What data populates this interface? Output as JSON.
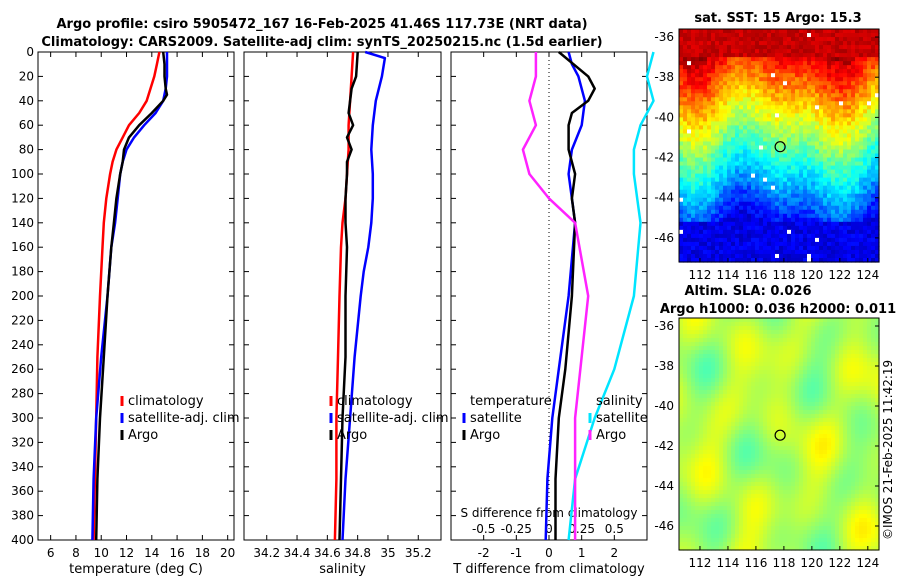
{
  "header": {
    "line1": "Argo profile: csiro 5905472_167 16-Feb-2025 41.46S 117.73E (NRT data)",
    "line2": "Climatology: CARS2009. Satellite-adj clim: synTS_20250215.nc (1.5d earlier)"
  },
  "stamp": "©IMOS 21-Feb-2025 11:42:19",
  "colors": {
    "climatology": "#ff0000",
    "satellite": "#0000ff",
    "argo": "#000000",
    "sal_satellite": "#00e5ff",
    "sal_argo": "#ff22ff"
  },
  "chart_data": [
    {
      "type": "line",
      "id": "temperature",
      "xlabel": "temperature (deg C)",
      "ylabel": "",
      "xlim": [
        5,
        20.5
      ],
      "ylim": [
        400,
        0
      ],
      "xticks": [
        "6",
        "8",
        "10",
        "12",
        "14",
        "16",
        "18",
        "20"
      ],
      "yticks": [
        "0",
        "20",
        "40",
        "60",
        "80",
        "100",
        "120",
        "140",
        "160",
        "180",
        "200",
        "220",
        "240",
        "260",
        "280",
        "300",
        "320",
        "340",
        "360",
        "380",
        "400"
      ],
      "legend": [
        "climatology",
        "satellite-adj. clim",
        "Argo"
      ],
      "series": [
        {
          "name": "climatology",
          "depth": [
            0,
            10,
            20,
            40,
            50,
            60,
            70,
            80,
            90,
            100,
            120,
            140,
            160,
            200,
            250,
            300,
            350,
            400
          ],
          "values": [
            14.6,
            14.4,
            14.2,
            13.6,
            13.0,
            12.2,
            11.7,
            11.2,
            10.9,
            10.7,
            10.4,
            10.2,
            10.1,
            9.9,
            9.7,
            9.6,
            9.5,
            9.4
          ]
        },
        {
          "name": "satellite-adj. clim",
          "depth": [
            0,
            10,
            20,
            30,
            40,
            50,
            60,
            70,
            80,
            90,
            100,
            120,
            140,
            160,
            200,
            250,
            300,
            350,
            400
          ],
          "values": [
            15.2,
            15.2,
            15.2,
            15.1,
            14.9,
            14.3,
            13.4,
            12.6,
            12.0,
            11.7,
            11.5,
            11.3,
            11.1,
            10.8,
            10.5,
            10.0,
            9.6,
            9.4,
            9.3
          ]
        },
        {
          "name": "Argo",
          "depth": [
            0,
            10,
            20,
            30,
            35,
            40,
            50,
            60,
            70,
            80,
            90,
            100,
            120,
            140,
            160,
            200,
            250,
            300,
            350,
            400
          ],
          "values": [
            14.9,
            15.0,
            15.0,
            15.1,
            15.2,
            14.9,
            14.0,
            13.0,
            12.2,
            11.8,
            11.7,
            11.5,
            11.2,
            11.0,
            10.8,
            10.5,
            10.2,
            9.9,
            9.7,
            9.6
          ]
        }
      ]
    },
    {
      "type": "line",
      "id": "salinity",
      "xlabel": "salinity",
      "ylabel": "",
      "xlim": [
        34.05,
        35.35
      ],
      "ylim": [
        400,
        0
      ],
      "xticks": [
        "34.2",
        "34.4",
        "34.6",
        "34.8",
        "35",
        "35.2"
      ],
      "legend": [
        "climatology",
        "satellite-adj. clim",
        "Argo"
      ],
      "series": [
        {
          "name": "climatology",
          "depth": [
            0,
            20,
            40,
            60,
            80,
            100,
            120,
            140,
            160,
            200,
            250,
            300,
            350,
            400
          ],
          "values": [
            34.77,
            34.76,
            34.75,
            34.74,
            34.74,
            34.73,
            34.72,
            34.7,
            34.69,
            34.68,
            34.67,
            34.66,
            34.66,
            34.65
          ]
        },
        {
          "name": "satellite-adj. clim",
          "depth": [
            0,
            5,
            20,
            40,
            60,
            80,
            100,
            120,
            140,
            160,
            180,
            200,
            250,
            300,
            350,
            400
          ],
          "values": [
            34.85,
            34.98,
            34.96,
            34.92,
            34.9,
            34.89,
            34.9,
            34.9,
            34.89,
            34.87,
            34.84,
            34.82,
            34.78,
            34.75,
            34.72,
            34.7
          ]
        },
        {
          "name": "Argo",
          "depth": [
            0,
            20,
            30,
            40,
            50,
            60,
            70,
            80,
            90,
            100,
            120,
            140,
            160,
            200,
            250,
            300,
            350,
            400
          ],
          "values": [
            34.8,
            34.79,
            34.76,
            34.75,
            34.74,
            34.77,
            34.73,
            34.76,
            34.73,
            34.73,
            34.72,
            34.72,
            34.73,
            34.72,
            34.72,
            34.7,
            34.69,
            34.68
          ]
        }
      ]
    },
    {
      "type": "line",
      "id": "difference",
      "xlabel": "T difference from climatology",
      "top_label": "S difference from climatology",
      "top_ticks": [
        "-0.5",
        "-0.25",
        "0",
        "0.25",
        "0.5"
      ],
      "xlim": [
        -3,
        3
      ],
      "ylim": [
        400,
        0
      ],
      "xticks": [
        "-2",
        "-1",
        "0",
        "1",
        "2"
      ],
      "legend_t_title": "temperature",
      "legend_s_title": "salinity",
      "legend_t": [
        "satellite",
        "Argo"
      ],
      "legend_s": [
        "satellite",
        "Argo"
      ],
      "series": [
        {
          "name": "T satellite",
          "depth": [
            0,
            10,
            20,
            40,
            60,
            80,
            100,
            120,
            140,
            200,
            260,
            300,
            350,
            400
          ],
          "values": [
            0.6,
            0.7,
            0.9,
            1.1,
            1.0,
            0.7,
            0.6,
            0.7,
            0.8,
            0.6,
            0.3,
            0.1,
            -0.05,
            -0.1
          ]
        },
        {
          "name": "T Argo",
          "depth": [
            0,
            20,
            30,
            40,
            50,
            60,
            80,
            100,
            120,
            140,
            200,
            260,
            300,
            350,
            400
          ],
          "values": [
            0.3,
            1.2,
            1.4,
            1.2,
            0.7,
            0.6,
            0.6,
            0.8,
            0.7,
            0.8,
            0.7,
            0.5,
            0.3,
            0.2,
            0.2
          ]
        },
        {
          "name": "S satellite",
          "depth": [
            0,
            20,
            40,
            60,
            80,
            100,
            140,
            200,
            260,
            300,
            350,
            400
          ],
          "values": [
            0.8,
            0.75,
            0.8,
            0.7,
            0.65,
            0.65,
            0.7,
            0.65,
            0.5,
            0.35,
            0.2,
            0.15
          ]
        },
        {
          "name": "S Argo",
          "depth": [
            0,
            20,
            40,
            60,
            80,
            100,
            120,
            140,
            200,
            300,
            400
          ],
          "values": [
            -0.1,
            -0.1,
            -0.15,
            -0.1,
            -0.2,
            -0.15,
            0.0,
            0.2,
            0.3,
            0.2,
            0.2
          ]
        }
      ]
    },
    {
      "type": "heatmap",
      "id": "sst_map",
      "title": "sat. SST: 15 Argo: 15.3",
      "xticks": [
        "112",
        "114",
        "116",
        "118",
        "120",
        "122",
        "124"
      ],
      "yticks": [
        "-36",
        "-38",
        "-40",
        "-42",
        "-44",
        "-46"
      ],
      "xlim": [
        110.5,
        124.8
      ],
      "ylim": [
        -47.2,
        -35.6
      ],
      "marker": {
        "lon": 117.73,
        "lat": -41.46
      }
    },
    {
      "type": "heatmap",
      "id": "sla_map",
      "title_line1": "Altim. SLA: 0.026",
      "title_line2": "Argo h1000: 0.036 h2000: 0.011",
      "xticks": [
        "112",
        "114",
        "116",
        "118",
        "120",
        "122",
        "124"
      ],
      "yticks": [
        "-36",
        "-38",
        "-40",
        "-42",
        "-44",
        "-46"
      ],
      "xlim": [
        110.5,
        124.8
      ],
      "ylim": [
        -47.2,
        -35.6
      ],
      "marker": {
        "lon": 117.73,
        "lat": -41.46
      }
    }
  ]
}
